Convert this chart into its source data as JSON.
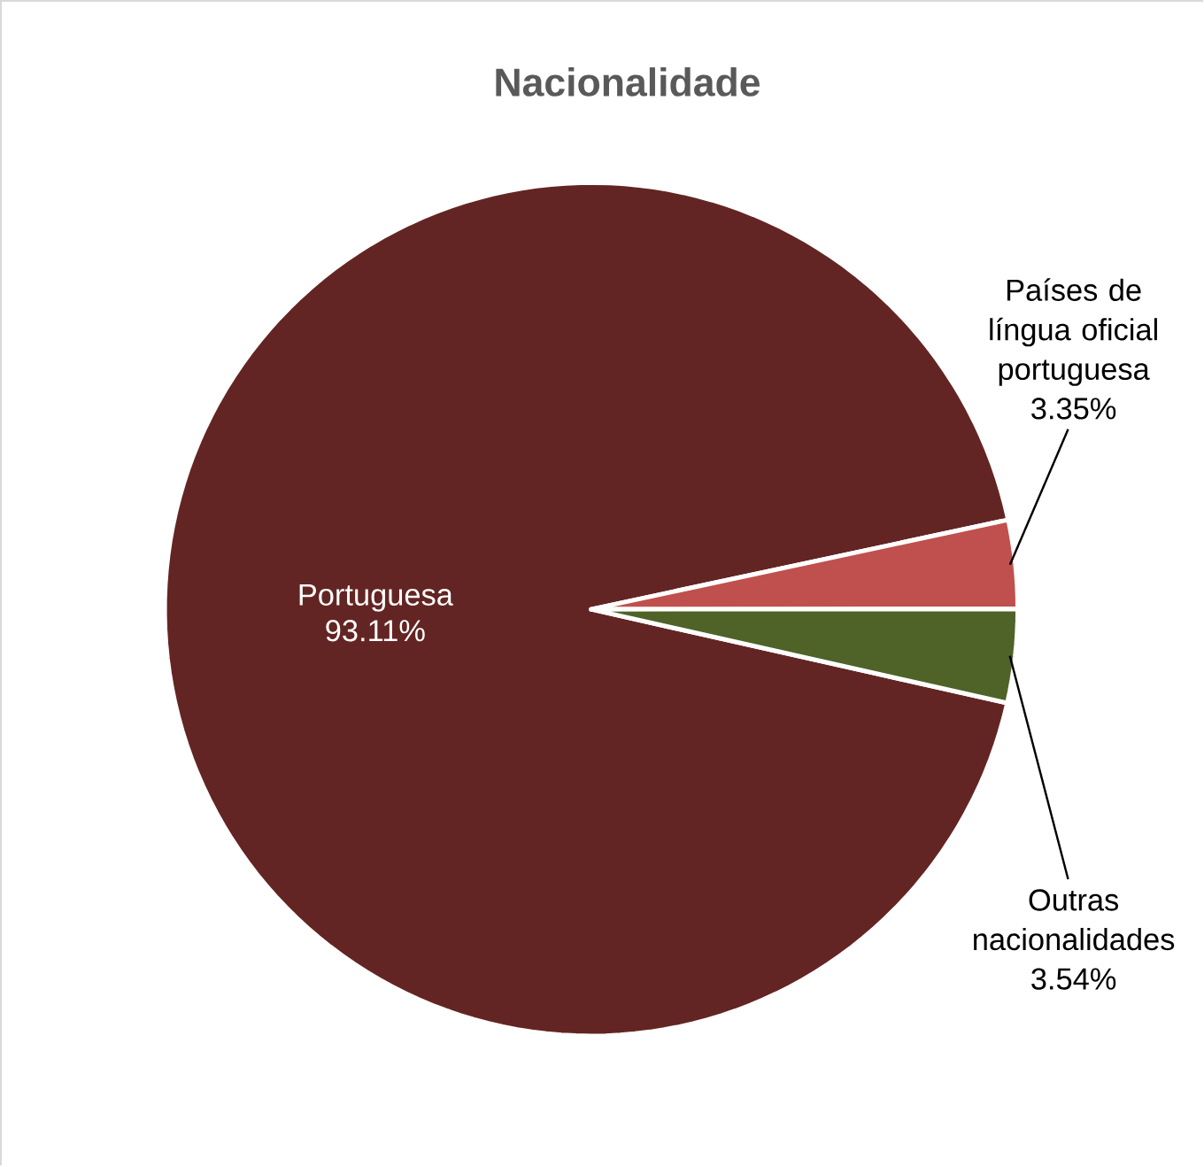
{
  "chart_data": {
    "type": "pie",
    "title": "Nacionalidade",
    "categories": [
      "Portuguesa",
      "Países de língua oficial portuguesa",
      "Outras nacionalidades"
    ],
    "values": [
      93.11,
      3.35,
      3.54
    ],
    "value_labels": [
      "93.11%",
      "3.35%",
      "3.54%"
    ],
    "colors": [
      "#632523",
      "#c0504d",
      "#4f6228"
    ]
  }
}
